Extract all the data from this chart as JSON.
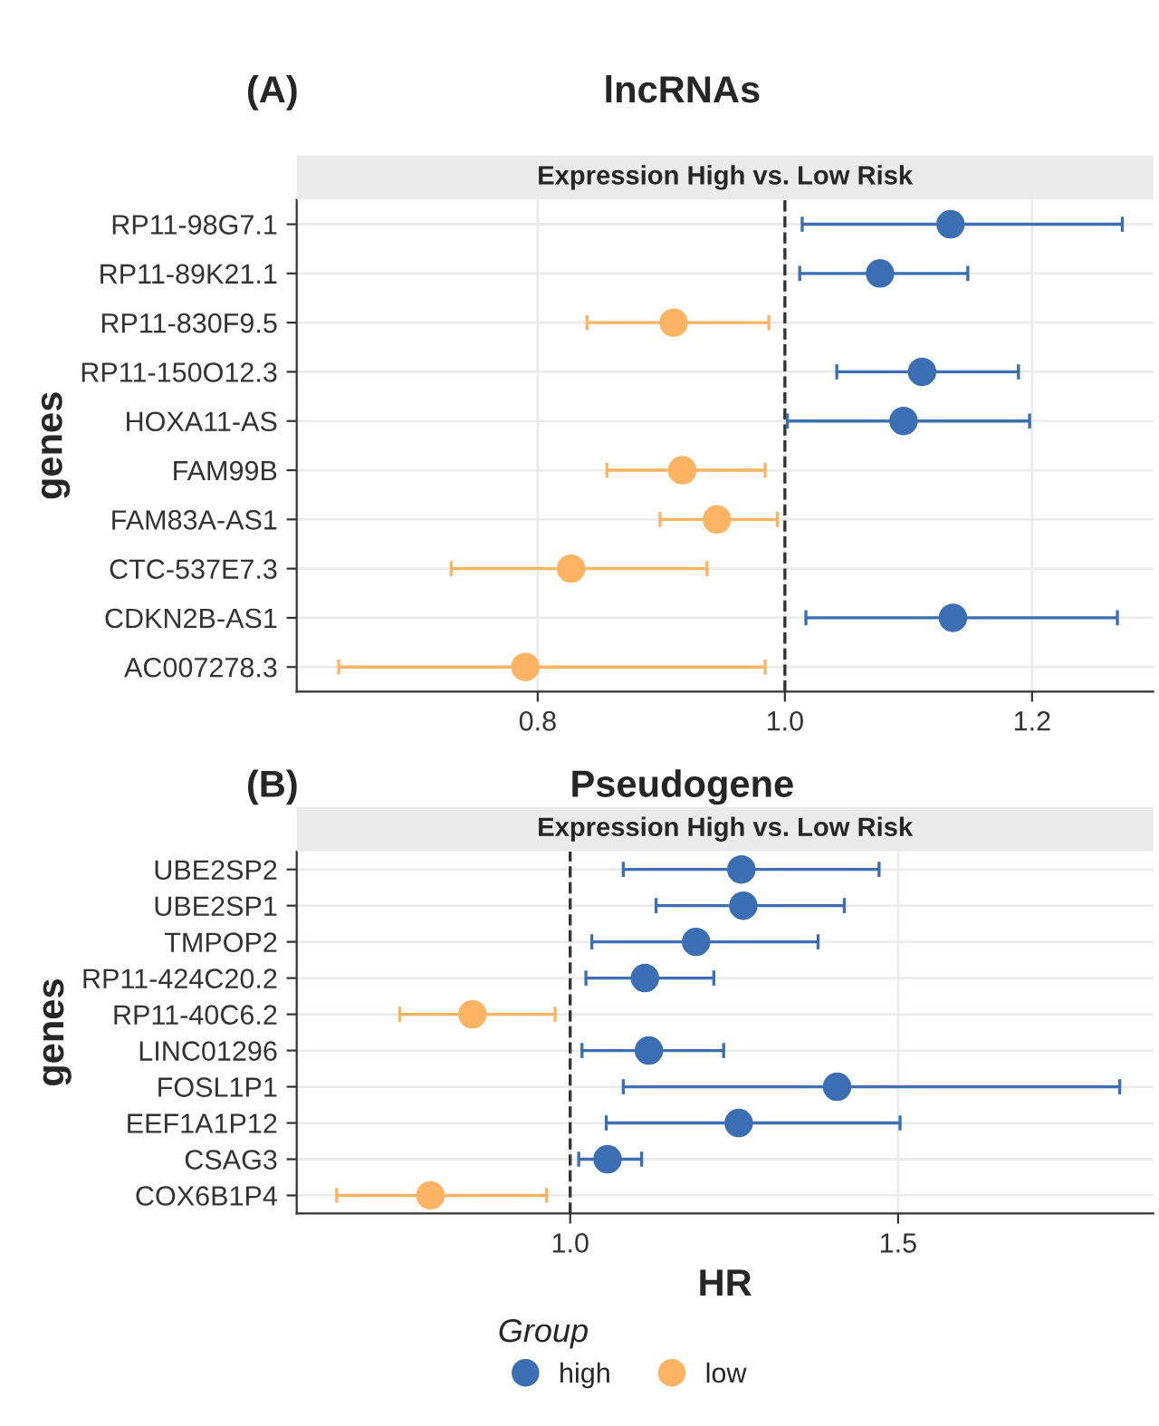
{
  "chart_data": [
    {
      "type": "scatter",
      "orientation": "horizontal",
      "title": "lncRNAs",
      "subtitle": "Expression High vs. Low Risk",
      "ylabel": "genes",
      "annotations": [
        "(A)"
      ],
      "categories": [
        "RP11-98G7.1",
        "RP11-89K21.1",
        "RP11-830F9.5",
        "RP11-150O12.3",
        "HOXA11-AS",
        "FAM99B",
        "FAM83A-AS1",
        "CTC-537E7.3",
        "CDKN2B-AS1",
        "AC007278.3"
      ],
      "series": [
        {
          "color": "#3c6eb4",
          "values": [
            1.134,
            1.077,
            null,
            1.111,
            1.096,
            null,
            null,
            null,
            1.136,
            null
          ],
          "errors": [
            [
              1.014,
              1.273
            ],
            [
              1.012,
              1.148
            ],
            null,
            [
              1.042,
              1.189
            ],
            [
              1.002,
              1.198
            ],
            null,
            null,
            null,
            [
              1.017,
              1.269
            ],
            null
          ]
        },
        {
          "color": "#fdb462",
          "values": [
            null,
            null,
            0.91,
            null,
            null,
            0.917,
            0.945,
            0.827,
            null,
            0.79
          ],
          "errors": [
            null,
            null,
            [
              0.84,
              0.987
            ],
            null,
            null,
            [
              0.856,
              0.984
            ],
            [
              0.899,
              0.994
            ],
            [
              0.73,
              0.937
            ],
            null,
            [
              0.639,
              0.984
            ]
          ]
        }
      ],
      "xlim": [
        0.605,
        1.298
      ],
      "xticks": [
        {
          "value": 0.8,
          "label": "0.8"
        },
        {
          "value": 1.0,
          "label": "1.0"
        },
        {
          "value": 1.2,
          "label": "1.2"
        }
      ],
      "ref_lines": [
        {
          "axis": "x",
          "value": 1.0,
          "line_style": "dashed",
          "color": "#333333"
        }
      ],
      "grid": true,
      "marker": "circle",
      "legend": false
    },
    {
      "type": "scatter",
      "orientation": "horizontal",
      "title": "Pseudogene",
      "subtitle": "Expression High vs. Low Risk",
      "xlabel": "HR",
      "ylabel": "genes",
      "legend_title": "Group",
      "annotations": [
        "(B)"
      ],
      "categories": [
        "UBE2SP2",
        "UBE2SP1",
        "TMPOP2",
        "RP11-424C20.2",
        "RP11-40C6.2",
        "LINC01296",
        "FOSL1P1",
        "EEF1A1P12",
        "CSAG3",
        "COX6B1P4"
      ],
      "series": [
        {
          "name": "high",
          "color": "#3c6eb4",
          "values": [
            1.261,
            1.264,
            1.192,
            1.114,
            null,
            1.12,
            1.407,
            1.257,
            1.057,
            null
          ],
          "errors": [
            [
              1.081,
              1.471
            ],
            [
              1.131,
              1.418
            ],
            [
              1.033,
              1.378
            ],
            [
              1.024,
              1.219
            ],
            null,
            [
              1.018,
              1.234
            ],
            [
              1.081,
              1.838
            ],
            [
              1.055,
              1.503
            ],
            [
              1.013,
              1.109
            ],
            null
          ]
        },
        {
          "name": "low",
          "color": "#fdb462",
          "values": [
            null,
            null,
            null,
            null,
            0.851,
            null,
            null,
            null,
            null,
            0.787
          ],
          "errors": [
            null,
            null,
            null,
            null,
            [
              0.74,
              0.977
            ],
            null,
            null,
            null,
            null,
            [
              0.644,
              0.964
            ]
          ]
        }
      ],
      "xlim": [
        0.583,
        1.889
      ],
      "xticks": [
        {
          "value": 1.0,
          "label": "1.0"
        },
        {
          "value": 1.5,
          "label": "1.5"
        }
      ],
      "ref_lines": [
        {
          "axis": "x",
          "value": 1.0,
          "line_style": "dashed",
          "color": "#333333"
        }
      ],
      "grid": true,
      "marker": "circle",
      "legend": "bottom"
    }
  ]
}
